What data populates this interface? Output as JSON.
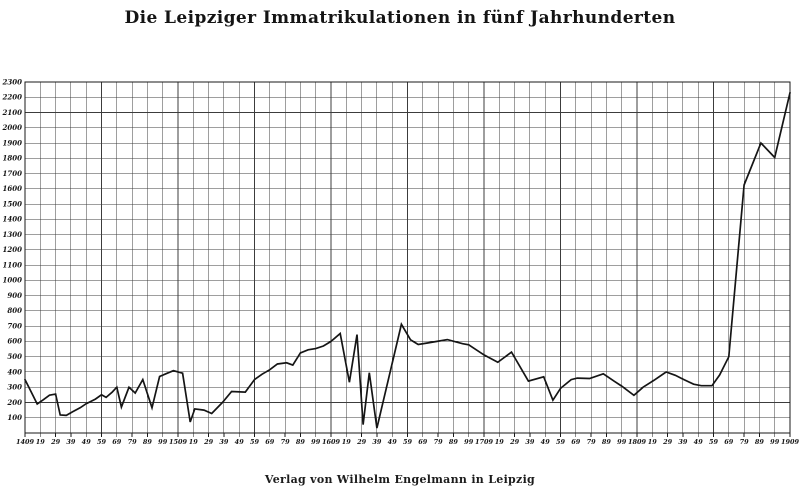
{
  "page": {
    "title": "Die Leipziger Immatrikulationen in fünf Jahrhunderten",
    "caption": "Verlag von Wilhelm Engelmann in Leipzig"
  },
  "colors": {
    "line": "#151515",
    "grid": "#3c3c3c",
    "border": "#1a1a1a",
    "text": "#161616",
    "background": "#ffffff"
  },
  "chart_data": {
    "type": "line",
    "title": "Die Leipziger Immatrikulationen in fünf Jahrhunderten",
    "xlabel": "",
    "ylabel": "",
    "xlim": [
      1409,
      1909
    ],
    "ylim": [
      0,
      2300
    ],
    "grid": true,
    "x_tick_interval": 10,
    "y_tick_interval": 100,
    "x_tick_labels": [
      "1409",
      "19",
      "29",
      "39",
      "49",
      "59",
      "69",
      "79",
      "89",
      "99",
      "1509",
      "19",
      "29",
      "39",
      "49",
      "59",
      "69",
      "79",
      "89",
      "99",
      "1609",
      "19",
      "29",
      "39",
      "49",
      "59",
      "69",
      "79",
      "89",
      "99",
      "1709",
      "19",
      "29",
      "39",
      "49",
      "59",
      "69",
      "79",
      "89",
      "99",
      "1809",
      "19",
      "29",
      "39",
      "49",
      "59",
      "69",
      "79",
      "89",
      "99",
      "1909"
    ],
    "y_tick_labels": [
      "2300",
      "2200",
      "2100",
      "2000",
      "1900",
      "1800",
      "1700",
      "1600",
      "1500",
      "1400",
      "1300",
      "1200",
      "1100",
      "1000",
      "900",
      "800",
      "700",
      "600",
      "500",
      "400",
      "300",
      "200",
      "100"
    ],
    "series": [
      {
        "name": "Immatrikulationen",
        "points": [
          [
            1409,
            350
          ],
          [
            1413,
            270
          ],
          [
            1417,
            190
          ],
          [
            1421,
            218
          ],
          [
            1425,
            248
          ],
          [
            1429,
            255
          ],
          [
            1432,
            118
          ],
          [
            1436,
            115
          ],
          [
            1440,
            138
          ],
          [
            1445,
            165
          ],
          [
            1449,
            192
          ],
          [
            1455,
            222
          ],
          [
            1459,
            250
          ],
          [
            1462,
            233
          ],
          [
            1466,
            268
          ],
          [
            1469,
            300
          ],
          [
            1472,
            170
          ],
          [
            1477,
            300
          ],
          [
            1481,
            262
          ],
          [
            1486,
            350
          ],
          [
            1492,
            165
          ],
          [
            1497,
            370
          ],
          [
            1502,
            392
          ],
          [
            1506,
            408
          ],
          [
            1512,
            392
          ],
          [
            1517,
            72
          ],
          [
            1520,
            158
          ],
          [
            1526,
            150
          ],
          [
            1531,
            128
          ],
          [
            1538,
            200
          ],
          [
            1544,
            272
          ],
          [
            1553,
            268
          ],
          [
            1559,
            350
          ],
          [
            1564,
            385
          ],
          [
            1569,
            415
          ],
          [
            1574,
            452
          ],
          [
            1580,
            460
          ],
          [
            1584,
            445
          ],
          [
            1589,
            525
          ],
          [
            1594,
            545
          ],
          [
            1599,
            553
          ],
          [
            1604,
            570
          ],
          [
            1609,
            600
          ],
          [
            1615,
            652
          ],
          [
            1621,
            333
          ],
          [
            1626,
            645
          ],
          [
            1630,
            55
          ],
          [
            1634,
            395
          ],
          [
            1639,
            32
          ],
          [
            1655,
            712
          ],
          [
            1661,
            610
          ],
          [
            1666,
            580
          ],
          [
            1672,
            590
          ],
          [
            1685,
            612
          ],
          [
            1695,
            585
          ],
          [
            1699,
            578
          ],
          [
            1709,
            512
          ],
          [
            1718,
            463
          ],
          [
            1727,
            530
          ],
          [
            1738,
            340
          ],
          [
            1748,
            368
          ],
          [
            1754,
            215
          ],
          [
            1759,
            292
          ],
          [
            1766,
            350
          ],
          [
            1770,
            360
          ],
          [
            1778,
            357
          ],
          [
            1787,
            388
          ],
          [
            1794,
            340
          ],
          [
            1799,
            307
          ],
          [
            1807,
            247
          ],
          [
            1813,
            300
          ],
          [
            1820,
            345
          ],
          [
            1828,
            400
          ],
          [
            1834,
            378
          ],
          [
            1839,
            353
          ],
          [
            1846,
            320
          ],
          [
            1851,
            310
          ],
          [
            1858,
            310
          ],
          [
            1863,
            380
          ],
          [
            1869,
            500
          ],
          [
            1879,
            1625
          ],
          [
            1890,
            1900
          ],
          [
            1899,
            1805
          ],
          [
            1909,
            2230
          ]
        ]
      }
    ]
  }
}
